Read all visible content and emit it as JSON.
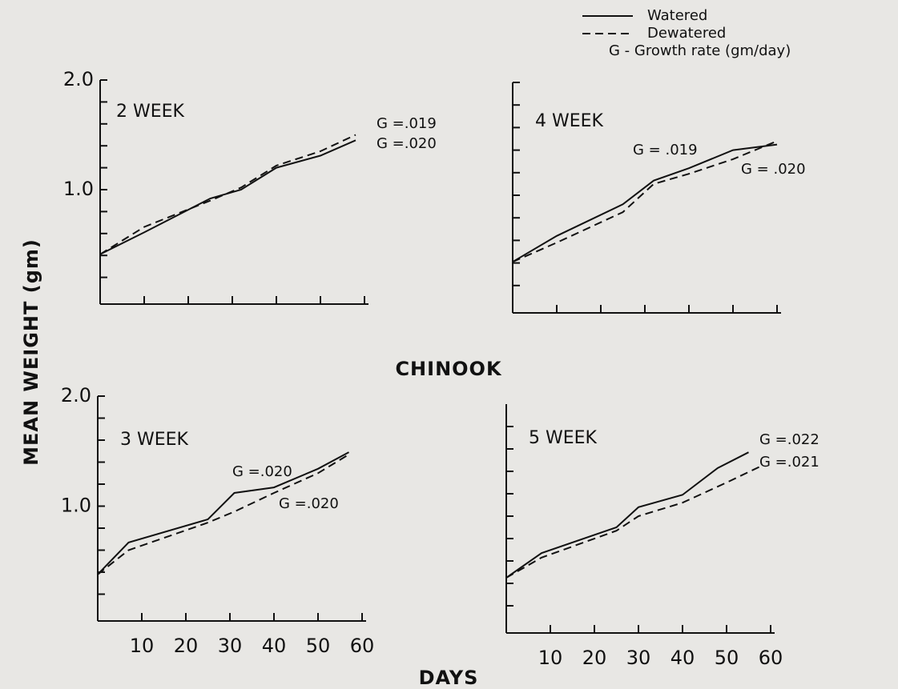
{
  "title": "CHINOOK",
  "y_label": "MEAN WEIGHT (gm)",
  "x_label": "DAYS",
  "legend_note": "G - Growth rate (gm/day)",
  "chart_data": [
    {
      "type": "line",
      "title": "2 WEEK",
      "xlim": [
        0,
        60
      ],
      "ylim": [
        0,
        2
      ],
      "xtick_labels": false,
      "ytick_labels": true,
      "xticks": [
        10,
        20,
        30,
        40,
        50,
        60
      ],
      "yticks": [
        0.2,
        0.4,
        0.6,
        0.8,
        {
          "value": 1,
          "label": "1.0"
        },
        1.2,
        1.4,
        1.6,
        1.8,
        {
          "value": 2,
          "label": "2.0"
        }
      ],
      "series": [
        {
          "name": "Watered",
          "color": "#111111",
          "line_style": "solid",
          "x": [
            0,
            10,
            25,
            32,
            40,
            50,
            58
          ],
          "values": [
            0.41,
            0.61,
            0.92,
            1.0,
            1.2,
            1.31,
            1.45
          ]
        },
        {
          "name": "Dewatered",
          "color": "#111111",
          "line_style": "dashed",
          "x": [
            0,
            10,
            25,
            32,
            40,
            50,
            58
          ],
          "values": [
            0.41,
            0.66,
            0.9,
            1.02,
            1.22,
            1.35,
            1.5
          ]
        }
      ],
      "annotations": [
        "G =.019",
        "G =.020"
      ]
    },
    {
      "type": "line",
      "title": "4 WEEK",
      "xlim": [
        0,
        60
      ],
      "ylim": [
        0,
        2
      ],
      "xtick_labels": false,
      "ytick_labels": false,
      "xticks": [
        10,
        20,
        30,
        40,
        50,
        60
      ],
      "yticks": [
        0.2,
        0.4,
        0.6,
        0.8,
        1,
        1.2,
        1.4,
        1.6,
        1.8,
        2
      ],
      "series": [
        {
          "name": "Watered",
          "color": "#111111",
          "line_style": "solid",
          "x": [
            0,
            10,
            25,
            32,
            40,
            50,
            60
          ],
          "values": [
            0.41,
            0.64,
            0.92,
            1.13,
            1.24,
            1.4,
            1.45
          ]
        },
        {
          "name": "Dewatered",
          "color": "#111111",
          "line_style": "dashed",
          "x": [
            0,
            10,
            25,
            32,
            40,
            50,
            60
          ],
          "values": [
            0.41,
            0.58,
            0.85,
            1.1,
            1.19,
            1.32,
            1.48
          ]
        }
      ],
      "annotations": [
        "G = .019",
        "G = .020"
      ]
    },
    {
      "type": "line",
      "title": "3 WEEK",
      "xlim": [
        0,
        60
      ],
      "ylim": [
        0,
        2
      ],
      "xtick_labels": true,
      "ytick_labels": true,
      "xticks": [
        10,
        20,
        30,
        40,
        50,
        60
      ],
      "yticks": [
        0.2,
        0.4,
        0.6,
        0.8,
        {
          "value": 1,
          "label": "1.0"
        },
        1.2,
        1.4,
        1.6,
        1.8,
        {
          "value": 2,
          "label": "2.0"
        }
      ],
      "series": [
        {
          "name": "Watered",
          "color": "#111111",
          "line_style": "solid",
          "x": [
            0,
            7,
            25,
            31,
            40,
            50,
            57
          ],
          "values": [
            0.38,
            0.67,
            0.88,
            1.12,
            1.17,
            1.34,
            1.49
          ]
        },
        {
          "name": "Dewatered",
          "color": "#111111",
          "line_style": "dashed",
          "x": [
            0,
            7,
            25,
            31,
            40,
            50,
            57
          ],
          "values": [
            0.38,
            0.6,
            0.85,
            0.95,
            1.12,
            1.3,
            1.47
          ]
        }
      ],
      "annotations": [
        "G =.020",
        "G =.020"
      ]
    },
    {
      "type": "line",
      "title": "5 WEEK",
      "xlim": [
        0,
        60
      ],
      "ylim": [
        0,
        2
      ],
      "xtick_labels": true,
      "ytick_labels": false,
      "xticks": [
        10,
        20,
        30,
        40,
        50,
        60
      ],
      "yticks": [
        0.2,
        0.4,
        0.6,
        0.8,
        1,
        1.2,
        1.4,
        1.6,
        1.8
      ],
      "series": [
        {
          "name": "Watered",
          "color": "#111111",
          "line_style": "solid",
          "x": [
            0,
            8,
            25,
            30,
            40,
            48,
            55
          ],
          "values": [
            0.45,
            0.67,
            0.9,
            1.08,
            1.19,
            1.43,
            1.57
          ]
        },
        {
          "name": "Dewatered",
          "color": "#111111",
          "line_style": "dashed",
          "x": [
            0,
            8,
            25,
            30,
            40,
            50,
            58
          ],
          "values": [
            0.45,
            0.63,
            0.87,
            1.0,
            1.12,
            1.3,
            1.45
          ]
        }
      ],
      "annotations": [
        "G =.022",
        "G =.021"
      ]
    }
  ]
}
